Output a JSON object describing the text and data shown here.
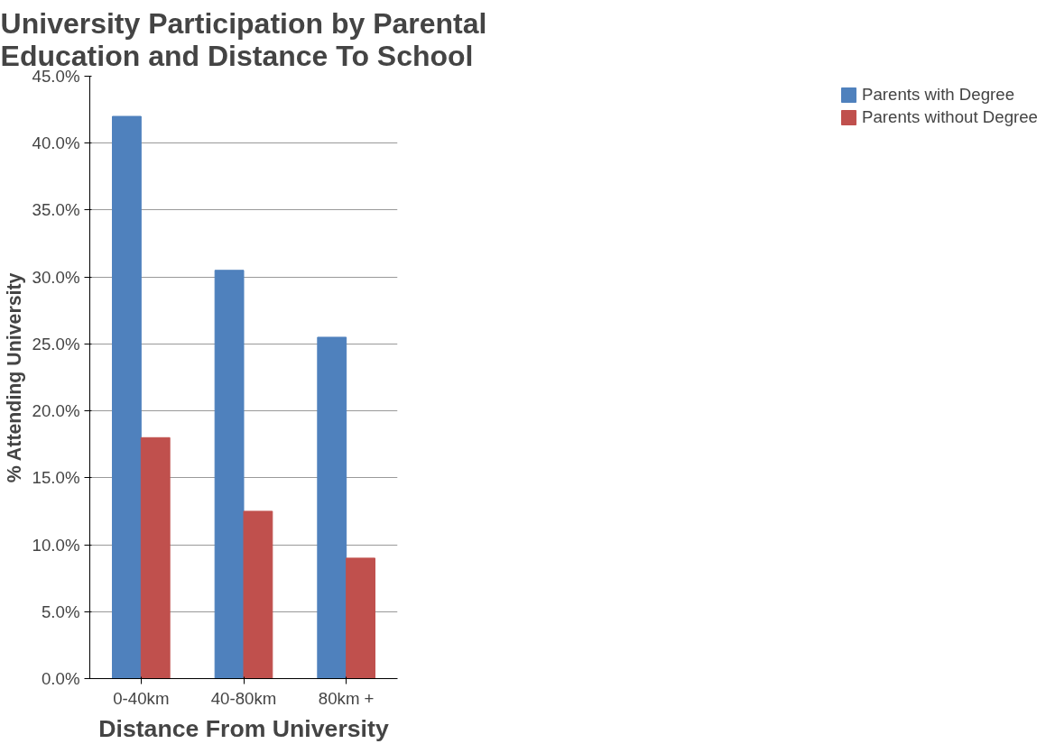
{
  "chart_data": {
    "type": "bar",
    "title": "University Participation by Parental Education and Distance To School",
    "xlabel": "Distance From University",
    "ylabel": "% Attending University",
    "categories": [
      "0-40km",
      "40-80km",
      "80km +"
    ],
    "series": [
      {
        "name": "Parents with Degree",
        "color": "#4f81bd",
        "values": [
          42.0,
          30.5,
          25.5
        ]
      },
      {
        "name": "Parents without Degree",
        "color": "#c0504d",
        "values": [
          18.0,
          12.5,
          9.0
        ]
      }
    ],
    "ylim": [
      0,
      45
    ],
    "yticks": [
      {
        "value": 0,
        "label": "0.0%"
      },
      {
        "value": 5,
        "label": "5.0%"
      },
      {
        "value": 10,
        "label": "10.0%"
      },
      {
        "value": 15,
        "label": "15.0%"
      },
      {
        "value": 20,
        "label": "20.0%"
      },
      {
        "value": 25,
        "label": "25.0%"
      },
      {
        "value": 30,
        "label": "30.0%"
      },
      {
        "value": 35,
        "label": "35.0%"
      },
      {
        "value": 40,
        "label": "40.0%"
      },
      {
        "value": 45,
        "label": "45.0%"
      }
    ],
    "grid": "y",
    "legend": "right"
  }
}
